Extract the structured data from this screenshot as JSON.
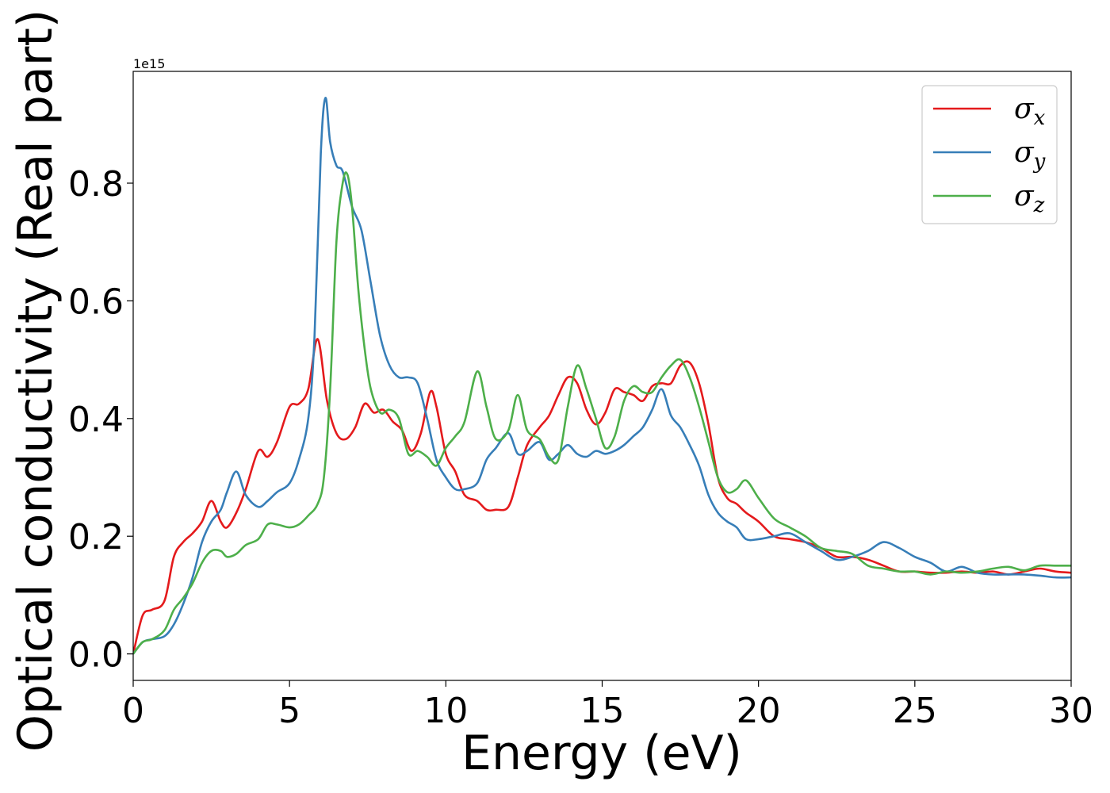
{
  "chart_data": {
    "type": "line",
    "xlabel": "Energy (eV)",
    "ylabel": "Optical conductivity (Real part)",
    "offset_text": "1e15",
    "xlim": [
      0,
      30
    ],
    "ylim": [
      -0.045,
      0.99
    ],
    "xticks": [
      0,
      5,
      10,
      15,
      20,
      25,
      30
    ],
    "xtick_labels": [
      "0",
      "5",
      "10",
      "15",
      "20",
      "25",
      "30"
    ],
    "yticks": [
      0.0,
      0.2,
      0.4,
      0.6,
      0.8
    ],
    "ytick_labels": [
      "0.0",
      "0.2",
      "0.4",
      "0.6",
      "0.8"
    ],
    "grid": false,
    "legend_position": "top-right",
    "series": [
      {
        "name": "σx",
        "symbol": "σ",
        "subscript": "x",
        "color": "#e41a1c",
        "x": [
          0,
          0.3,
          0.6,
          1.0,
          1.3,
          1.6,
          1.9,
          2.2,
          2.5,
          2.8,
          3.0,
          3.3,
          3.6,
          4.0,
          4.3,
          4.6,
          5.0,
          5.3,
          5.6,
          5.9,
          6.2,
          6.5,
          6.8,
          7.1,
          7.4,
          7.7,
          8.0,
          8.3,
          8.6,
          8.9,
          9.2,
          9.5,
          9.7,
          10.0,
          10.3,
          10.6,
          11.0,
          11.3,
          11.6,
          12.0,
          12.3,
          12.6,
          13.0,
          13.3,
          13.6,
          13.9,
          14.2,
          14.5,
          14.8,
          15.1,
          15.4,
          15.7,
          16.0,
          16.3,
          16.6,
          16.9,
          17.2,
          17.5,
          17.8,
          18.1,
          18.4,
          18.7,
          19.0,
          19.3,
          19.6,
          20.0,
          20.5,
          21.0,
          21.5,
          22.0,
          22.5,
          23.0,
          23.5,
          24.0,
          24.5,
          25.0,
          25.5,
          26.0,
          26.5,
          27.0,
          27.5,
          28.0,
          28.5,
          29.0,
          29.5,
          30.0
        ],
        "y": [
          0.0,
          0.065,
          0.075,
          0.09,
          0.165,
          0.19,
          0.205,
          0.225,
          0.26,
          0.225,
          0.215,
          0.24,
          0.28,
          0.345,
          0.335,
          0.36,
          0.42,
          0.425,
          0.45,
          0.535,
          0.43,
          0.375,
          0.365,
          0.385,
          0.425,
          0.41,
          0.415,
          0.395,
          0.38,
          0.345,
          0.375,
          0.445,
          0.42,
          0.34,
          0.31,
          0.27,
          0.26,
          0.245,
          0.245,
          0.25,
          0.3,
          0.355,
          0.385,
          0.405,
          0.44,
          0.47,
          0.46,
          0.415,
          0.39,
          0.41,
          0.45,
          0.445,
          0.44,
          0.43,
          0.455,
          0.46,
          0.46,
          0.49,
          0.495,
          0.46,
          0.39,
          0.3,
          0.265,
          0.255,
          0.24,
          0.225,
          0.2,
          0.195,
          0.19,
          0.18,
          0.165,
          0.165,
          0.16,
          0.15,
          0.14,
          0.14,
          0.138,
          0.138,
          0.14,
          0.138,
          0.14,
          0.135,
          0.14,
          0.145,
          0.14,
          0.138
        ]
      },
      {
        "name": "σy",
        "symbol": "σ",
        "subscript": "y",
        "color": "#377eb8",
        "x": [
          0,
          0.3,
          0.6,
          1.0,
          1.3,
          1.6,
          1.9,
          2.2,
          2.5,
          2.8,
          3.0,
          3.3,
          3.6,
          4.0,
          4.3,
          4.6,
          5.0,
          5.3,
          5.6,
          5.8,
          6.0,
          6.15,
          6.3,
          6.5,
          6.7,
          7.0,
          7.3,
          7.6,
          7.9,
          8.2,
          8.5,
          8.8,
          9.1,
          9.4,
          9.7,
          10.0,
          10.3,
          10.6,
          11.0,
          11.3,
          11.6,
          12.0,
          12.3,
          12.6,
          13.0,
          13.3,
          13.6,
          13.9,
          14.2,
          14.5,
          14.8,
          15.1,
          15.4,
          15.7,
          16.0,
          16.3,
          16.6,
          16.9,
          17.2,
          17.5,
          17.8,
          18.1,
          18.4,
          18.7,
          19.0,
          19.3,
          19.6,
          20.0,
          20.5,
          21.0,
          21.5,
          22.0,
          22.5,
          23.0,
          23.5,
          24.0,
          24.5,
          25.0,
          25.5,
          26.0,
          26.5,
          27.0,
          27.5,
          28.0,
          28.5,
          29.0,
          29.5,
          30.0
        ],
        "y": [
          0.0,
          0.02,
          0.025,
          0.03,
          0.05,
          0.085,
          0.13,
          0.19,
          0.225,
          0.245,
          0.275,
          0.31,
          0.27,
          0.25,
          0.26,
          0.275,
          0.29,
          0.33,
          0.4,
          0.54,
          0.85,
          0.945,
          0.87,
          0.83,
          0.82,
          0.76,
          0.72,
          0.63,
          0.54,
          0.49,
          0.47,
          0.47,
          0.46,
          0.4,
          0.33,
          0.3,
          0.28,
          0.28,
          0.29,
          0.33,
          0.35,
          0.375,
          0.34,
          0.345,
          0.36,
          0.33,
          0.34,
          0.355,
          0.34,
          0.335,
          0.345,
          0.34,
          0.345,
          0.355,
          0.37,
          0.385,
          0.415,
          0.45,
          0.405,
          0.385,
          0.355,
          0.32,
          0.27,
          0.24,
          0.225,
          0.215,
          0.195,
          0.195,
          0.2,
          0.205,
          0.19,
          0.175,
          0.16,
          0.165,
          0.175,
          0.19,
          0.18,
          0.165,
          0.155,
          0.14,
          0.148,
          0.138,
          0.135,
          0.135,
          0.135,
          0.133,
          0.13,
          0.13
        ]
      },
      {
        "name": "σz",
        "symbol": "σ",
        "subscript": "z",
        "color": "#4daf4a",
        "x": [
          0,
          0.3,
          0.6,
          1.0,
          1.3,
          1.6,
          1.9,
          2.2,
          2.5,
          2.8,
          3.0,
          3.3,
          3.6,
          4.0,
          4.3,
          4.6,
          5.0,
          5.3,
          5.6,
          5.9,
          6.1,
          6.3,
          6.5,
          6.7,
          6.85,
          7.0,
          7.2,
          7.4,
          7.6,
          7.9,
          8.2,
          8.5,
          8.8,
          9.1,
          9.4,
          9.7,
          10.0,
          10.3,
          10.6,
          11.0,
          11.3,
          11.6,
          12.0,
          12.3,
          12.6,
          13.0,
          13.3,
          13.6,
          13.9,
          14.2,
          14.5,
          14.8,
          15.1,
          15.4,
          15.7,
          16.0,
          16.3,
          16.6,
          16.9,
          17.2,
          17.5,
          17.8,
          18.1,
          18.4,
          18.7,
          19.0,
          19.3,
          19.6,
          20.0,
          20.5,
          21.0,
          21.5,
          22.0,
          22.5,
          23.0,
          23.5,
          24.0,
          24.5,
          25.0,
          25.5,
          26.0,
          26.5,
          27.0,
          27.5,
          28.0,
          28.5,
          29.0,
          29.5,
          30.0
        ],
        "y": [
          0.0,
          0.02,
          0.025,
          0.04,
          0.075,
          0.095,
          0.12,
          0.155,
          0.175,
          0.175,
          0.165,
          0.17,
          0.185,
          0.195,
          0.22,
          0.22,
          0.215,
          0.22,
          0.235,
          0.255,
          0.3,
          0.45,
          0.7,
          0.8,
          0.815,
          0.76,
          0.62,
          0.52,
          0.45,
          0.41,
          0.415,
          0.4,
          0.34,
          0.345,
          0.335,
          0.32,
          0.35,
          0.37,
          0.395,
          0.48,
          0.42,
          0.365,
          0.38,
          0.44,
          0.38,
          0.365,
          0.335,
          0.33,
          0.42,
          0.49,
          0.45,
          0.4,
          0.35,
          0.37,
          0.43,
          0.455,
          0.445,
          0.445,
          0.47,
          0.49,
          0.5,
          0.47,
          0.42,
          0.36,
          0.3,
          0.275,
          0.28,
          0.295,
          0.265,
          0.23,
          0.215,
          0.2,
          0.18,
          0.175,
          0.17,
          0.15,
          0.145,
          0.14,
          0.14,
          0.135,
          0.14,
          0.138,
          0.14,
          0.145,
          0.148,
          0.142,
          0.15,
          0.15,
          0.15
        ]
      }
    ]
  }
}
